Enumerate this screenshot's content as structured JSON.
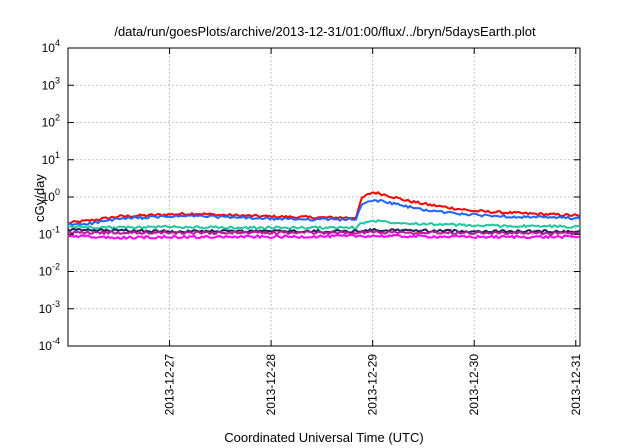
{
  "chart_data": {
    "type": "line",
    "title": "/data/run/goesPlots/archive/2013-12-31/01:00/flux/../bryn/5daysEarth.plot",
    "xlabel": "Coordinated Universal Time (UTC)",
    "ylabel": "cGy/day",
    "yscale": "log",
    "ylim_exponents": [
      -4,
      4
    ],
    "ytick_exponents": [
      -4,
      -3,
      -2,
      -1,
      0,
      1,
      2,
      3,
      4
    ],
    "ytick_base": "10",
    "xlim": [
      "2013-12-26T00:00",
      "2013-12-31T01:00"
    ],
    "xticks": [
      "2013-12-27",
      "2013-12-28",
      "2013-12-29",
      "2013-12-30",
      "2013-12-31"
    ],
    "grid": true,
    "legend": "none",
    "series": [
      {
        "color": "#ff0000",
        "points": [
          [
            "2013-12-26T00:00",
            0.2
          ],
          [
            "2013-12-26T06:00",
            0.24
          ],
          [
            "2013-12-26T12:00",
            0.3
          ],
          [
            "2013-12-27T00:00",
            0.34
          ],
          [
            "2013-12-27T06:00",
            0.36
          ],
          [
            "2013-12-27T12:00",
            0.33
          ],
          [
            "2013-12-28T00:00",
            0.3
          ],
          [
            "2013-12-28T12:00",
            0.28
          ],
          [
            "2013-12-28T20:00",
            0.28
          ],
          [
            "2013-12-28T21:30",
            0.95
          ],
          [
            "2013-12-29T00:00",
            1.35
          ],
          [
            "2013-12-29T03:00",
            1.15
          ],
          [
            "2013-12-29T08:00",
            0.8
          ],
          [
            "2013-12-29T14:00",
            0.6
          ],
          [
            "2013-12-30T00:00",
            0.42
          ],
          [
            "2013-12-30T12:00",
            0.36
          ],
          [
            "2013-12-31T00:00",
            0.32
          ],
          [
            "2013-12-31T01:00",
            0.3
          ]
        ]
      },
      {
        "color": "#1e64ff",
        "points": [
          [
            "2013-12-26T00:00",
            0.18
          ],
          [
            "2013-12-26T06:00",
            0.2
          ],
          [
            "2013-12-26T12:00",
            0.26
          ],
          [
            "2013-12-27T00:00",
            0.3
          ],
          [
            "2013-12-27T06:00",
            0.31
          ],
          [
            "2013-12-27T12:00",
            0.29
          ],
          [
            "2013-12-28T00:00",
            0.26
          ],
          [
            "2013-12-28T12:00",
            0.25
          ],
          [
            "2013-12-28T20:00",
            0.25
          ],
          [
            "2013-12-28T21:30",
            0.62
          ],
          [
            "2013-12-29T00:00",
            0.82
          ],
          [
            "2013-12-29T03:00",
            0.75
          ],
          [
            "2013-12-29T08:00",
            0.55
          ],
          [
            "2013-12-29T14:00",
            0.42
          ],
          [
            "2013-12-30T00:00",
            0.33
          ],
          [
            "2013-12-30T12:00",
            0.29
          ],
          [
            "2013-12-31T00:00",
            0.27
          ],
          [
            "2013-12-31T01:00",
            0.26
          ]
        ]
      },
      {
        "color": "#20c8a0",
        "points": [
          [
            "2013-12-26T00:00",
            0.16
          ],
          [
            "2013-12-26T12:00",
            0.15
          ],
          [
            "2013-12-27T00:00",
            0.16
          ],
          [
            "2013-12-27T12:00",
            0.15
          ],
          [
            "2013-12-28T00:00",
            0.15
          ],
          [
            "2013-12-28T20:00",
            0.15
          ],
          [
            "2013-12-28T21:30",
            0.2
          ],
          [
            "2013-12-29T00:00",
            0.23
          ],
          [
            "2013-12-29T08:00",
            0.2
          ],
          [
            "2013-12-30T00:00",
            0.17
          ],
          [
            "2013-12-31T01:00",
            0.16
          ]
        ]
      },
      {
        "color": "#202060",
        "points": [
          [
            "2013-12-26T00:00",
            0.13
          ],
          [
            "2013-12-27T00:00",
            0.12
          ],
          [
            "2013-12-28T00:00",
            0.12
          ],
          [
            "2013-12-28T20:00",
            0.12
          ],
          [
            "2013-12-29T00:00",
            0.13
          ],
          [
            "2013-12-30T00:00",
            0.12
          ],
          [
            "2013-12-31T01:00",
            0.12
          ]
        ]
      },
      {
        "color": "#b02090",
        "points": [
          [
            "2013-12-26T00:00",
            0.11
          ],
          [
            "2013-12-27T00:00",
            0.11
          ],
          [
            "2013-12-28T00:00",
            0.11
          ],
          [
            "2013-12-28T20:00",
            0.11
          ],
          [
            "2013-12-29T00:00",
            0.115
          ],
          [
            "2013-12-30T00:00",
            0.11
          ],
          [
            "2013-12-31T01:00",
            0.105
          ]
        ]
      },
      {
        "color": "#ff00ff",
        "points": [
          [
            "2013-12-26T00:00",
            0.09
          ],
          [
            "2013-12-26T12:00",
            0.08
          ],
          [
            "2013-12-27T00:00",
            0.085
          ],
          [
            "2013-12-28T00:00",
            0.085
          ],
          [
            "2013-12-29T00:00",
            0.09
          ],
          [
            "2013-12-30T00:00",
            0.085
          ],
          [
            "2013-12-31T01:00",
            0.085
          ]
        ]
      }
    ]
  }
}
